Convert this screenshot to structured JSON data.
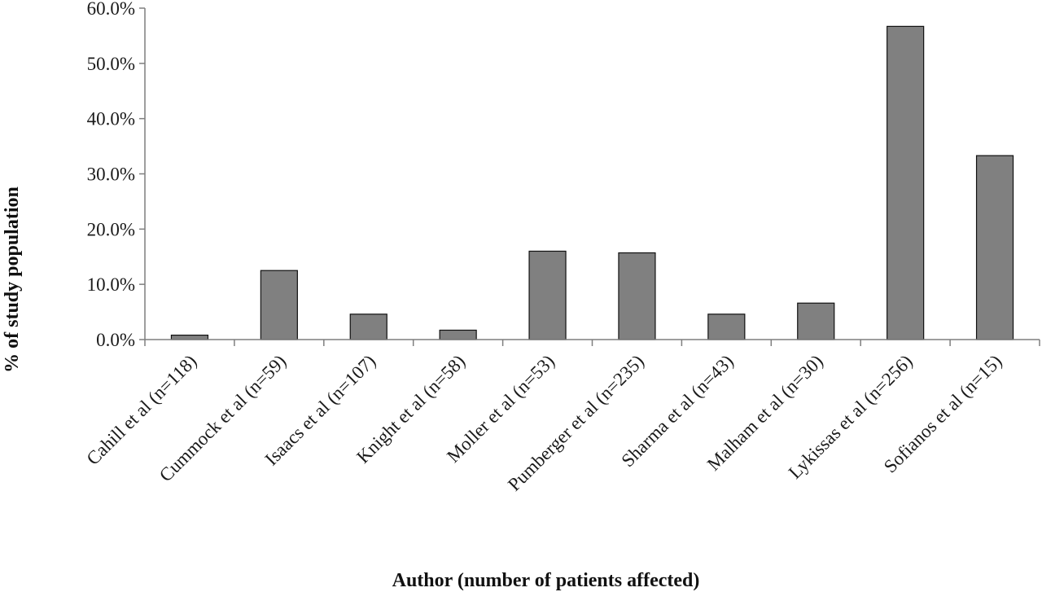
{
  "chart_data": {
    "type": "bar",
    "title": "",
    "xlabel": "Author (number of patients affected)",
    "ylabel": "% of study population",
    "categories": [
      "Cahill et al (n=118)",
      "Cummock et al (n=59)",
      "Isaacs et al (n=107)",
      "Knight et al (n=58)",
      "Moller et al (n=53)",
      "Pumberger et al (n=235)",
      "Sharma et al (n=43)",
      "Malham et al (n=30)",
      "Lykissas et al (n=256)",
      "Sofianos et al (n=15)"
    ],
    "values": [
      0.8,
      12.5,
      4.6,
      1.7,
      16.0,
      15.7,
      4.6,
      6.6,
      56.7,
      33.3
    ],
    "ylim": [
      0,
      60
    ],
    "yticks": [
      0,
      10,
      20,
      30,
      40,
      50,
      60
    ],
    "ytick_labels": [
      "0.0%",
      "10.0%",
      "20.0%",
      "30.0%",
      "40.0%",
      "50.0%",
      "60.0%"
    ],
    "grid": false,
    "bar_color": "#808080",
    "bar_edge_color": "#111111",
    "axis_color": "#7f7f7f"
  }
}
